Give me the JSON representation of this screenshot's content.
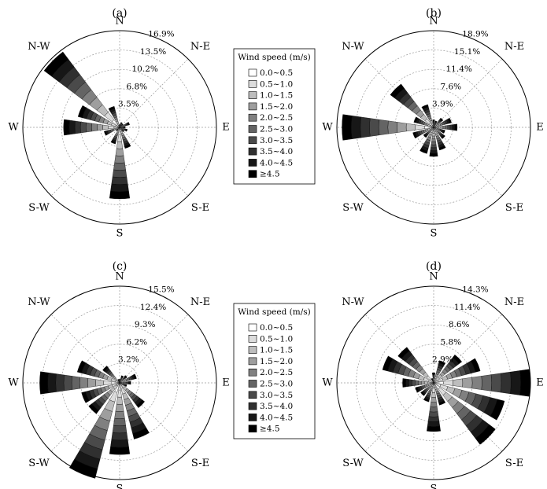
{
  "chart_data": [
    {
      "type": "wind-rose",
      "panel_label": "(a)",
      "directions": [
        "N",
        "NNE",
        "NE",
        "ENE",
        "E",
        "ESE",
        "SE",
        "SSE",
        "S",
        "SSW",
        "SW",
        "WSW",
        "W",
        "WNW",
        "NW",
        "NNW"
      ],
      "compass_labels": {
        "N": "N",
        "NE": "N-E",
        "E": "E",
        "SE": "S-E",
        "S": "S",
        "SW": "S-W",
        "W": "W",
        "NW": "N-W"
      },
      "ring_labels": [
        "3.5%",
        "6.8%",
        "10.2%",
        "13.5%",
        "16.9%"
      ],
      "max_percent": 16.9,
      "frequency_percent": [
        0.5,
        0.9,
        0.8,
        1.8,
        1.0,
        1.4,
        1.0,
        3.8,
        12.5,
        3.0,
        0.8,
        2.8,
        9.8,
        7.5,
        16.5,
        3.8
      ]
    },
    {
      "type": "wind-rose",
      "panel_label": "(b)",
      "directions": [
        "N",
        "NNE",
        "NE",
        "ENE",
        "E",
        "ESE",
        "SE",
        "SSE",
        "S",
        "SSW",
        "SW",
        "WSW",
        "W",
        "WNW",
        "NW",
        "NNW"
      ],
      "compass_labels": {
        "N": "N",
        "NE": "N-E",
        "E": "E",
        "SE": "S-E",
        "S": "S",
        "SW": "S-W",
        "W": "W",
        "NW": "N-W"
      },
      "ring_labels": [
        "3.9%",
        "7.6%",
        "11.4%",
        "15.1%",
        "18.9%"
      ],
      "max_percent": 18.9,
      "frequency_percent": [
        1.5,
        1.3,
        2.3,
        3.6,
        4.6,
        2.3,
        2.8,
        4.6,
        5.7,
        5.3,
        2.5,
        4.2,
        17.9,
        4.0,
        10.6,
        4.6
      ]
    },
    {
      "type": "wind-rose",
      "panel_label": "(c)",
      "directions": [
        "N",
        "NNE",
        "NE",
        "ENE",
        "E",
        "ESE",
        "SE",
        "SSE",
        "S",
        "SSW",
        "SW",
        "WSW",
        "W",
        "WNW",
        "NW",
        "NNW"
      ],
      "compass_labels": {
        "N": "N",
        "NE": "N-E",
        "E": "E",
        "SE": "S-E",
        "S": "S",
        "SW": "S-W",
        "W": "W",
        "NW": "N-W"
      },
      "ring_labels": [
        "3.2%",
        "6.2%",
        "9.3%",
        "12.4%",
        "15.5%"
      ],
      "max_percent": 15.5,
      "frequency_percent": [
        0.6,
        1.2,
        1.5,
        2.8,
        1.8,
        1.2,
        5.0,
        9.3,
        11.5,
        15.8,
        6.2,
        6.3,
        12.8,
        7.0,
        3.4,
        0.6
      ]
    },
    {
      "type": "wind-rose",
      "panel_label": "(d)",
      "directions": [
        "N",
        "NNE",
        "NE",
        "ENE",
        "E",
        "ESE",
        "SE",
        "SSE",
        "S",
        "SSW",
        "SW",
        "WSW",
        "W",
        "WNW",
        "NW",
        "NNW"
      ],
      "compass_labels": {
        "N": "N",
        "NE": "N-E",
        "E": "E",
        "SE": "S-E",
        "S": "S",
        "SW": "S-W",
        "W": "W",
        "NW": "N-W"
      },
      "ring_labels": [
        "2.9%",
        "5.8%",
        "8.6%",
        "11.4%",
        "14.3%"
      ],
      "max_percent": 14.3,
      "frequency_percent": [
        1.5,
        3.4,
        5.2,
        7.1,
        14.3,
        10.8,
        11.4,
        3.4,
        7.2,
        2.9,
        2.4,
        2.8,
        4.6,
        7.8,
        6.6,
        0.7
      ]
    }
  ],
  "legend": {
    "title": "Wind speed (m/s)",
    "bins": [
      "0.0~0.5",
      "0.5~1.0",
      "1.0~1.5",
      "1.5~2.0",
      "2.0~2.5",
      "2.5~3.0",
      "3.0~3.5",
      "3.5~4.0",
      "4.0~4.5",
      "≥4.5"
    ],
    "colors": [
      "#ffffff",
      "#dcdcdc",
      "#bdbdbd",
      "#9e9e9e",
      "#808080",
      "#646464",
      "#4a4a4a",
      "#303030",
      "#171717",
      "#000000"
    ]
  }
}
